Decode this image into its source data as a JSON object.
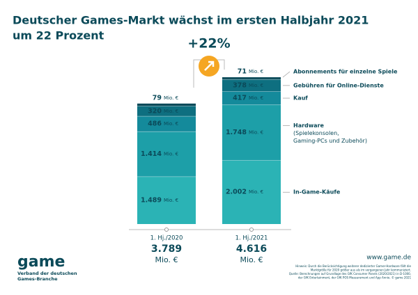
{
  "chart_data": {
    "type": "stacked_bar",
    "title": [
      "Deutscher Games-Markt wächst im ersten Halbjahr 2021",
      "um 22 Prozent"
    ],
    "categories": [
      "1. Hj./2020",
      "1. Hj./2021"
    ],
    "unit": "Mio. €",
    "series": [
      {
        "name": "In-Game-Käufe",
        "color": "#2bb3b5",
        "values": [
          1489,
          2002
        ],
        "value_labels": [
          "1.489",
          "2.002"
        ]
      },
      {
        "name": "Hardware",
        "note": [
          "(Spielekonsolen,",
          "Gaming-PCs und Zubehör)"
        ],
        "color": "#1d9fa8",
        "values": [
          1414,
          1748
        ],
        "value_labels": [
          "1.414",
          "1.748"
        ]
      },
      {
        "name": "Kauf",
        "color": "#148a9b",
        "values": [
          486,
          417
        ],
        "value_labels": [
          "486",
          "417"
        ]
      },
      {
        "name": "Gebühren für Online-Dienste",
        "color": "#0e6f80",
        "values": [
          320,
          378
        ],
        "value_labels": [
          "320",
          "378"
        ]
      },
      {
        "name": "Abonnements für einzelne Spiele",
        "color": "#0b4a59",
        "values": [
          79,
          71
        ],
        "value_labels": [
          "79",
          "71"
        ]
      }
    ],
    "totals": {
      "values": [
        3789,
        4616
      ],
      "value_labels": [
        "3.789",
        "4.616"
      ]
    },
    "growth_label": "+22%",
    "growth_color": "#f5a623"
  },
  "footer": {
    "logo": "game",
    "organization": [
      "Verband der deutschen",
      "Games-Branche"
    ],
    "url": "www.game.de",
    "source": [
      "Hinweis: Durch die Berücksichtigung weiterer dedizierter Gamer-Hardware fällt die",
      "Marktgröße für 2020 größer aus als im vergangenen Jahr kommuniziert.",
      "Quelle: Berechnungen auf Grundlage des GfK Consumer Panels (2020/2021) in D-1000,",
      "der GfK Entertainment, der GfK POS Measurement und App Annie. © game 2021"
    ]
  }
}
